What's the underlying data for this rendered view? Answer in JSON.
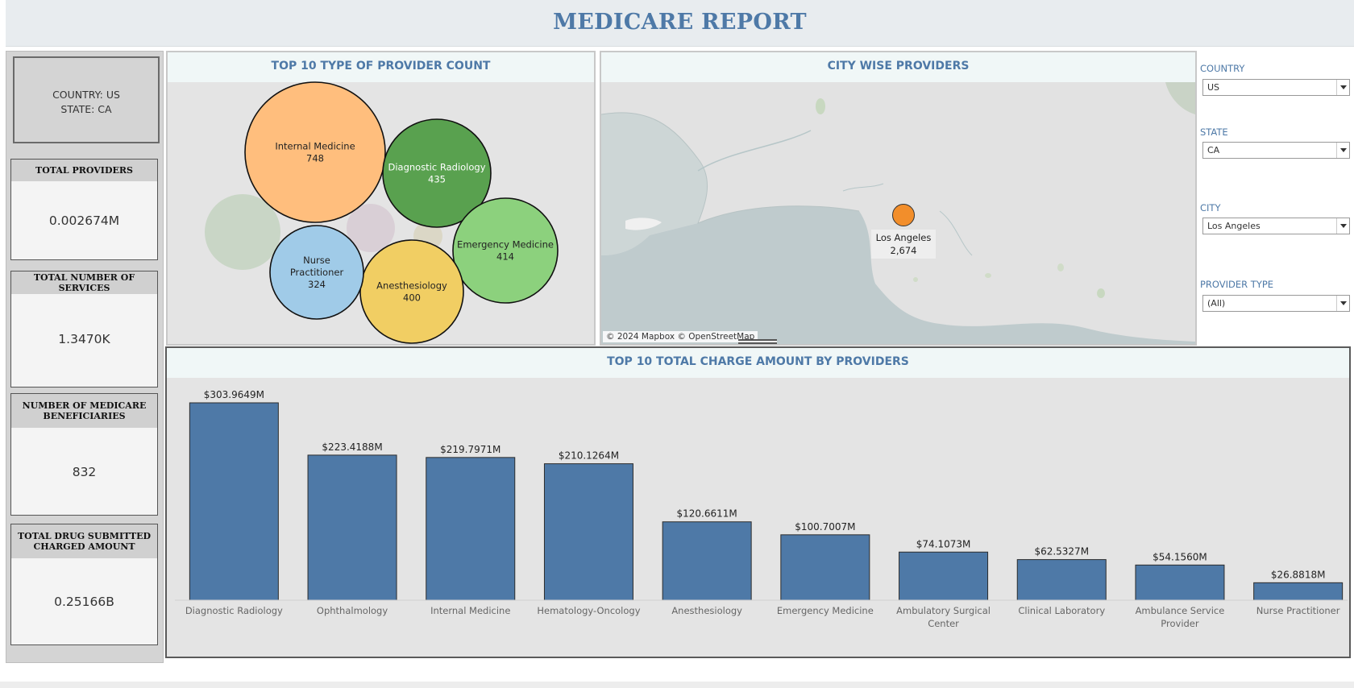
{
  "header": {
    "title": "MEDICARE REPORT"
  },
  "scope": {
    "country": "COUNTRY: US",
    "state": "STATE: CA"
  },
  "kpis": [
    {
      "label": "TOTAL PROVIDERS",
      "value": "0.002674M"
    },
    {
      "label": "TOTAL NUMBER OF SERVICES",
      "value": "1.3470K"
    },
    {
      "label": "NUMBER OF MEDICARE BENEFICIARIES",
      "value": "832"
    },
    {
      "label": "TOTAL DRUG SUBMITTED CHARGED AMOUNT",
      "value": "0.25166B"
    }
  ],
  "bubble_panel": {
    "title": "TOP 10 TYPE OF PROVIDER COUNT",
    "bubbles": [
      {
        "name": "Internal Medicine",
        "count": "748",
        "color": "#ffbe7d"
      },
      {
        "name": "Diagnostic Radiology",
        "count": "435",
        "color": "#59a14f"
      },
      {
        "name": "Emergency Medicine",
        "count": "414",
        "color": "#8cd17d"
      },
      {
        "name": "Anesthesiology",
        "count": "400",
        "color": "#f1ce63"
      },
      {
        "name": "Nurse Practitioner",
        "count": "324",
        "color": "#a0cbe8"
      }
    ],
    "faded_bubble_colors": [
      "#c9d6c6",
      "#d9cfd6",
      "#dbd7c6"
    ]
  },
  "map_panel": {
    "title": "CITY WISE PROVIDERS",
    "marker": {
      "city": "Los Angeles",
      "count": "2,674",
      "color": "#f28e2b"
    },
    "attribution": "© 2024 Mapbox © OpenStreetMap"
  },
  "filters": [
    {
      "label": "COUNTRY",
      "value": "US"
    },
    {
      "label": "STATE",
      "value": "CA"
    },
    {
      "label": "CITY",
      "value": "Los Angeles"
    },
    {
      "label": "PROVIDER TYPE",
      "value": "(All)"
    }
  ],
  "bar_panel": {
    "title": "TOP 10 TOTAL CHARGE AMOUNT BY PROVIDERS"
  },
  "chart_data": {
    "type": "bar",
    "title": "TOP 10 TOTAL CHARGE AMOUNT BY PROVIDERS",
    "categories": [
      "Diagnostic Radiology",
      "Ophthalmology",
      "Internal Medicine",
      "Hematology-Oncology",
      "Anesthesiology",
      "Emergency Medicine",
      "Ambulatory Surgical Center",
      "Clinical Laboratory",
      "Ambulance Service Provider",
      "Nurse Practitioner"
    ],
    "values": [
      303.9649,
      223.4188,
      219.7971,
      210.1264,
      120.6611,
      100.7007,
      74.1073,
      62.5327,
      54.156,
      26.8818
    ],
    "labels": [
      "$303.9649M",
      "$223.4188M",
      "$219.7971M",
      "$210.1264M",
      "$120.6611M",
      "$100.7007M",
      "$74.1073M",
      "$62.5327M",
      "$54.1560M",
      "$26.8818M"
    ],
    "bar_color": "#4e79a7",
    "ylim": [
      0,
      303.9649
    ],
    "grid": false
  }
}
